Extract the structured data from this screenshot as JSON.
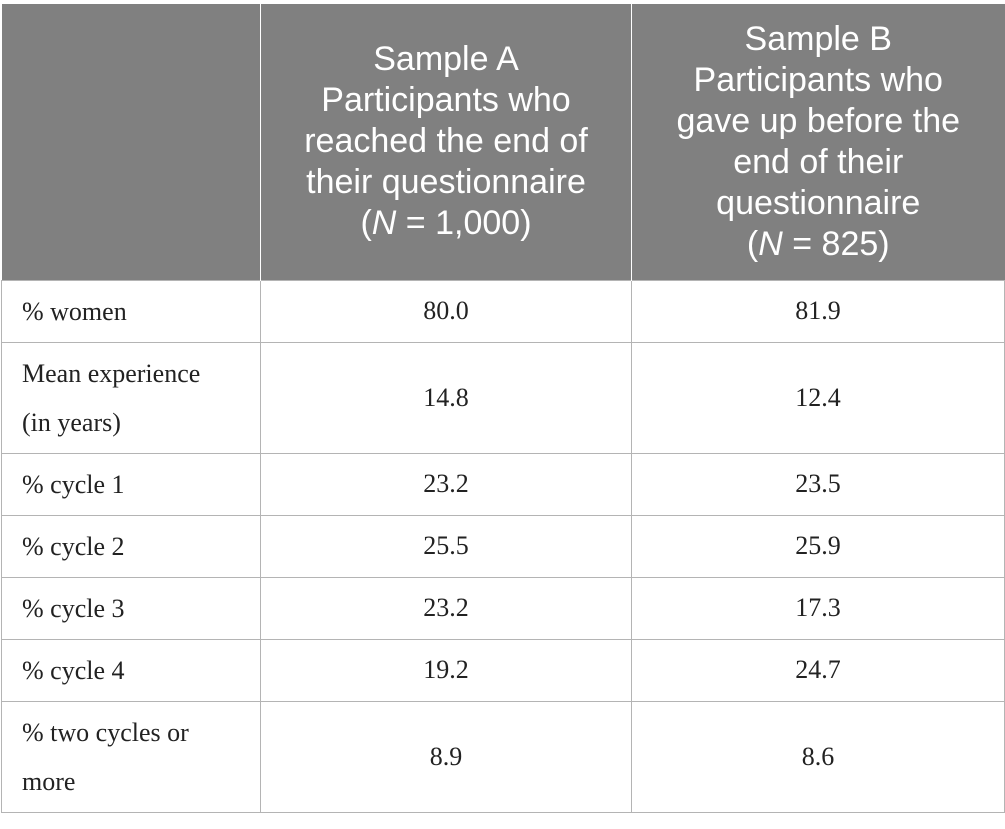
{
  "table": {
    "header": {
      "col0": "",
      "col1": {
        "line1": "Sample A",
        "line2": "Participants who",
        "line3": "reached the end of",
        "line4": "their questionnaire",
        "n_open": "(",
        "n_italic": "N",
        "n_rest": " = 1,000)"
      },
      "col2": {
        "line1": "Sample B",
        "line2": "Participants who",
        "line3": "gave up before the",
        "line4": "end of their",
        "line5": "questionnaire",
        "n_open": "(",
        "n_italic": "N",
        "n_rest": " = 825)"
      }
    },
    "rows": [
      {
        "label": "% women",
        "label_line2": "",
        "a": "80.0",
        "b": "81.9"
      },
      {
        "label": "Mean experience",
        "label_line2": "(in years)",
        "a": "14.8",
        "b": "12.4"
      },
      {
        "label": "% cycle 1",
        "label_line2": "",
        "a": "23.2",
        "b": "23.5"
      },
      {
        "label": "% cycle 2",
        "label_line2": "",
        "a": "25.5",
        "b": "25.9"
      },
      {
        "label": "% cycle 3",
        "label_line2": "",
        "a": "23.2",
        "b": "17.3"
      },
      {
        "label": "% cycle 4",
        "label_line2": "",
        "a": "19.2",
        "b": "24.7"
      },
      {
        "label": "% two cycles or",
        "label_line2": "more",
        "a": "8.9",
        "b": "8.6"
      }
    ]
  }
}
